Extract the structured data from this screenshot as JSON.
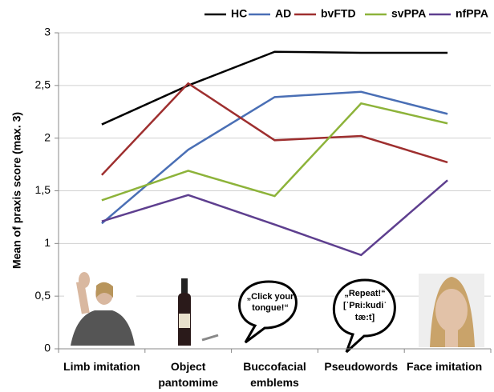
{
  "chart_data": {
    "type": "line",
    "y_label": "Mean of praxis score (max. 3)",
    "categories": [
      "Limb imitation",
      "Object pantomime",
      "Buccofacial emblems",
      "Pseudowords",
      "Face imitation"
    ],
    "series": [
      {
        "name": "HC",
        "color": "#000000",
        "values": [
          2.13,
          2.5,
          2.82,
          2.81,
          2.81
        ]
      },
      {
        "name": "AD",
        "color": "#4a6fb5",
        "values": [
          1.19,
          1.89,
          2.39,
          2.44,
          2.23
        ]
      },
      {
        "name": "bvFTD",
        "color": "#9e2f2f",
        "values": [
          1.65,
          2.52,
          1.98,
          2.02,
          1.77
        ]
      },
      {
        "name": "svPPA",
        "color": "#8db33a",
        "values": [
          1.41,
          1.69,
          1.45,
          2.33,
          2.14
        ]
      },
      {
        "name": "nfPPA",
        "color": "#5e3f8f",
        "values": [
          1.21,
          1.46,
          1.18,
          0.89,
          1.6
        ]
      }
    ],
    "ylim": [
      0,
      3
    ],
    "yticks": [
      0,
      {
        "value": 0.5,
        "label": "0,5"
      },
      1,
      {
        "value": 1.5,
        "label": "1,5"
      },
      2,
      {
        "value": 2.5,
        "label": "2,5"
      },
      3
    ],
    "grid": true,
    "legend": "top",
    "annotations": [
      {
        "lines": [
          "„Click your",
          "tongue!“"
        ]
      },
      {
        "lines": [
          "„Repeat!“",
          "[ˈPʀi:kudiˈ",
          "tæ:t]"
        ]
      }
    ]
  }
}
